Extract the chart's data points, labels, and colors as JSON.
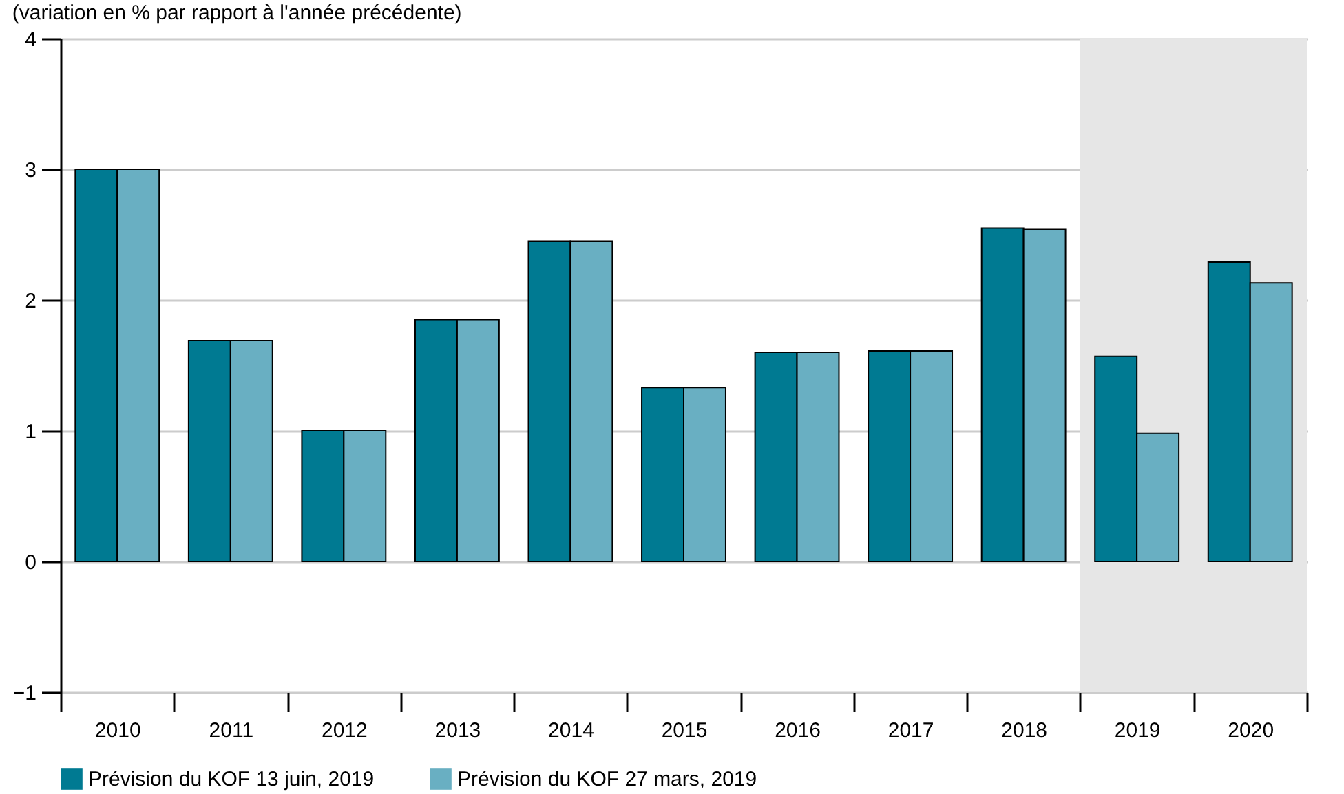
{
  "chart_data": {
    "type": "bar",
    "subtitle": "(variation en % par rapport à l'année précédente)",
    "categories": [
      "2010",
      "2011",
      "2012",
      "2013",
      "2014",
      "2015",
      "2016",
      "2017",
      "2018",
      "2019",
      "2020"
    ],
    "series": [
      {
        "name": "Prévision du KOF 13 juin, 2019",
        "color": "#007a92",
        "values": [
          3.0,
          1.69,
          1.0,
          1.85,
          2.45,
          1.33,
          1.6,
          1.61,
          2.55,
          1.57,
          2.29
        ]
      },
      {
        "name": "Prévision du KOF 27 mars, 2019",
        "color": "#69afc2",
        "values": [
          3.0,
          1.69,
          1.0,
          1.85,
          2.45,
          1.33,
          1.6,
          1.61,
          2.54,
          0.98,
          2.13
        ]
      }
    ],
    "ylim": [
      -1,
      4
    ],
    "yticks": [
      {
        "value": -1,
        "label": "−1"
      },
      0,
      1,
      2,
      3,
      4
    ],
    "grid": "y",
    "legend": "bottom left",
    "bands": [
      {
        "axis": "x",
        "from": "2019",
        "to": "2020",
        "color": "#e6e6e6"
      }
    ]
  }
}
